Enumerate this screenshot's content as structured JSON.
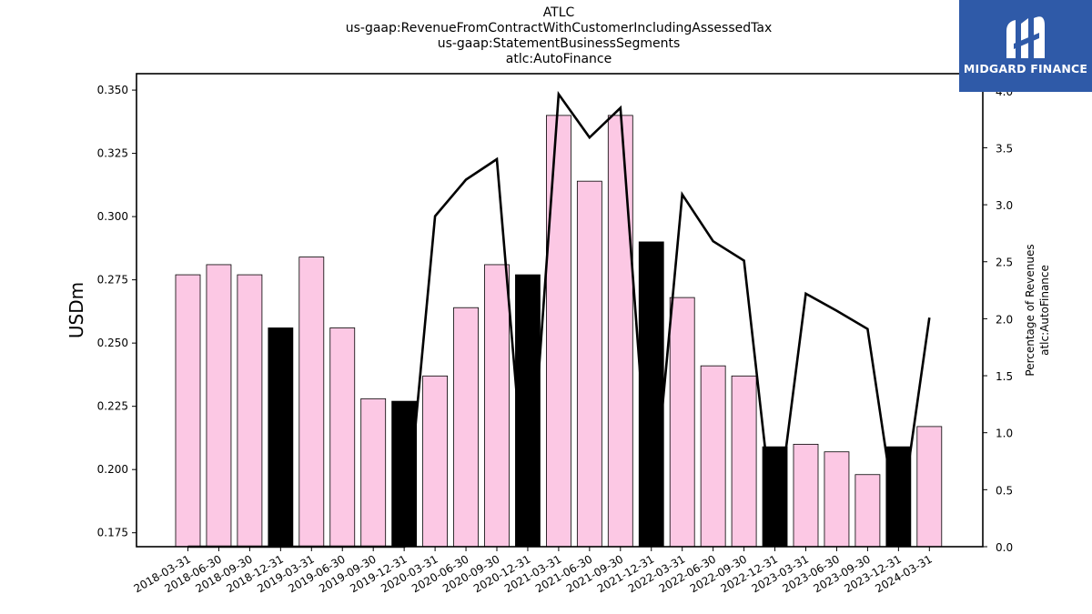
{
  "title_lines": [
    "ATLC",
    "us-gaap:RevenueFromContractWithCustomerIncludingAssessedTax",
    "us-gaap:StatementBusinessSegments",
    "atlc:AutoFinance"
  ],
  "logo": {
    "text": "MIDGARD FINANCE"
  },
  "colors": {
    "bar_regular": "#fcc8e4",
    "bar_q4": "#000000",
    "line": "#000000",
    "logo_bg": "#2f5aa8"
  },
  "chart_data": {
    "type": "bar",
    "categories": [
      "2018-03-31",
      "2018-06-30",
      "2018-09-30",
      "2018-12-31",
      "2019-03-31",
      "2019-06-30",
      "2019-09-30",
      "2019-12-31",
      "2020-03-31",
      "2020-06-30",
      "2020-09-30",
      "2020-12-31",
      "2021-03-31",
      "2021-06-30",
      "2021-09-30",
      "2021-12-31",
      "2022-03-31",
      "2022-06-30",
      "2022-09-30",
      "2022-12-31",
      "2023-03-31",
      "2023-06-30",
      "2023-09-30",
      "2023-12-31",
      "2024-03-31"
    ],
    "values": [
      0.277,
      0.281,
      0.277,
      0.256,
      0.284,
      0.256,
      0.228,
      0.227,
      0.237,
      0.264,
      0.281,
      0.277,
      0.34,
      0.314,
      0.34,
      0.29,
      0.268,
      0.241,
      0.237,
      0.209,
      0.21,
      0.207,
      0.198,
      0.209,
      0.217
    ],
    "highlight_categories": [
      "2018-12-31",
      "2019-12-31",
      "2020-12-31",
      "2021-12-31",
      "2022-12-31",
      "2023-12-31"
    ],
    "ylabel": "USDm",
    "ylim": [
      0.1695,
      0.3565
    ],
    "yticks": [
      0.175,
      0.2,
      0.225,
      0.25,
      0.275,
      0.3,
      0.325,
      0.35
    ],
    "secondary": {
      "type": "line",
      "ylabel_lines": [
        "Percentage of Revenues",
        "atlc:AutoFinance"
      ],
      "ylim": [
        0.0,
        4.15
      ],
      "yticks": [
        0.0,
        0.5,
        1.0,
        1.5,
        2.0,
        2.5,
        3.0,
        3.5,
        4.0
      ],
      "values": [
        0.0,
        0.0,
        0.0,
        0.0,
        0.0,
        0.0,
        0.0,
        0.0,
        2.9,
        3.22,
        3.4,
        0.18,
        3.97,
        3.59,
        3.85,
        0.18,
        3.09,
        2.68,
        2.51,
        0.1,
        2.22,
        2.07,
        1.91,
        0.1,
        2.01
      ]
    }
  }
}
